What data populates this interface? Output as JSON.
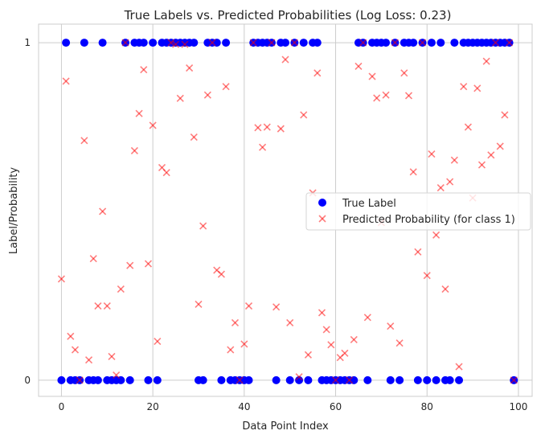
{
  "chart_data": {
    "type": "scatter",
    "title": "True Labels vs. Predicted Probabilities (Log Loss: 0.23)",
    "xlabel": "Data Point Index",
    "ylabel": "Label/Probability",
    "xlim": [
      -5,
      103
    ],
    "ylim": [
      -0.048,
      1.055
    ],
    "xticks": [
      0,
      20,
      40,
      60,
      80,
      100
    ],
    "yticks": [
      0,
      1
    ],
    "grid": true,
    "legend_position": "center-right",
    "series": [
      {
        "name": "True Label",
        "marker": "circle",
        "color": "#0000ff",
        "values": [
          0,
          1,
          0,
          0,
          0,
          1,
          0,
          0,
          0,
          1,
          0,
          0,
          0,
          0,
          1,
          0,
          1,
          1,
          1,
          0,
          1,
          0,
          1,
          1,
          1,
          1,
          1,
          1,
          1,
          1,
          0,
          0,
          1,
          1,
          1,
          0,
          1,
          0,
          0,
          0,
          0,
          0,
          1,
          1,
          1,
          1,
          1,
          0,
          1,
          1,
          0,
          1,
          0,
          1,
          0,
          1,
          1,
          0,
          0,
          0,
          0,
          0,
          0,
          0,
          0,
          1,
          1,
          0,
          1,
          1,
          1,
          1,
          0,
          1,
          0,
          1,
          1,
          1,
          0,
          1,
          0,
          1,
          0,
          1,
          0,
          0,
          1,
          0,
          1,
          1,
          1,
          1,
          1,
          1,
          1,
          1,
          1,
          1,
          1,
          0
        ]
      },
      {
        "name": "Predicted Probability (for class 1)",
        "marker": "x",
        "color": "#ff0000",
        "alpha": 0.5,
        "values": [
          0.3,
          0.886,
          0.13,
          0.09,
          0.0,
          0.71,
          0.06,
          0.36,
          0.22,
          0.5,
          0.22,
          0.07,
          0.015,
          0.27,
          1.0,
          0.34,
          0.68,
          0.79,
          0.92,
          0.345,
          0.755,
          0.115,
          0.63,
          0.615,
          1.0,
          0.995,
          0.835,
          0.995,
          0.925,
          0.72,
          0.225,
          0.457,
          0.845,
          1.0,
          0.326,
          0.314,
          0.87,
          0.09,
          0.17,
          0.0,
          0.107,
          0.22,
          1.0,
          0.748,
          0.69,
          0.75,
          1.0,
          0.217,
          0.745,
          0.95,
          0.17,
          1.0,
          0.01,
          0.786,
          0.075,
          0.555,
          0.91,
          0.2,
          0.15,
          0.105,
          0.0,
          0.067,
          0.08,
          0.0,
          0.12,
          0.93,
          1.0,
          0.186,
          0.9,
          0.836,
          0.467,
          0.845,
          0.16,
          1.0,
          0.11,
          0.91,
          0.843,
          0.617,
          0.38,
          1.0,
          0.31,
          0.67,
          0.43,
          0.57,
          0.27,
          0.588,
          0.652,
          0.04,
          0.87,
          0.75,
          0.54,
          0.865,
          0.638,
          0.945,
          0.667,
          1.0,
          0.693,
          0.786,
          1.0,
          0.0
        ]
      }
    ]
  }
}
